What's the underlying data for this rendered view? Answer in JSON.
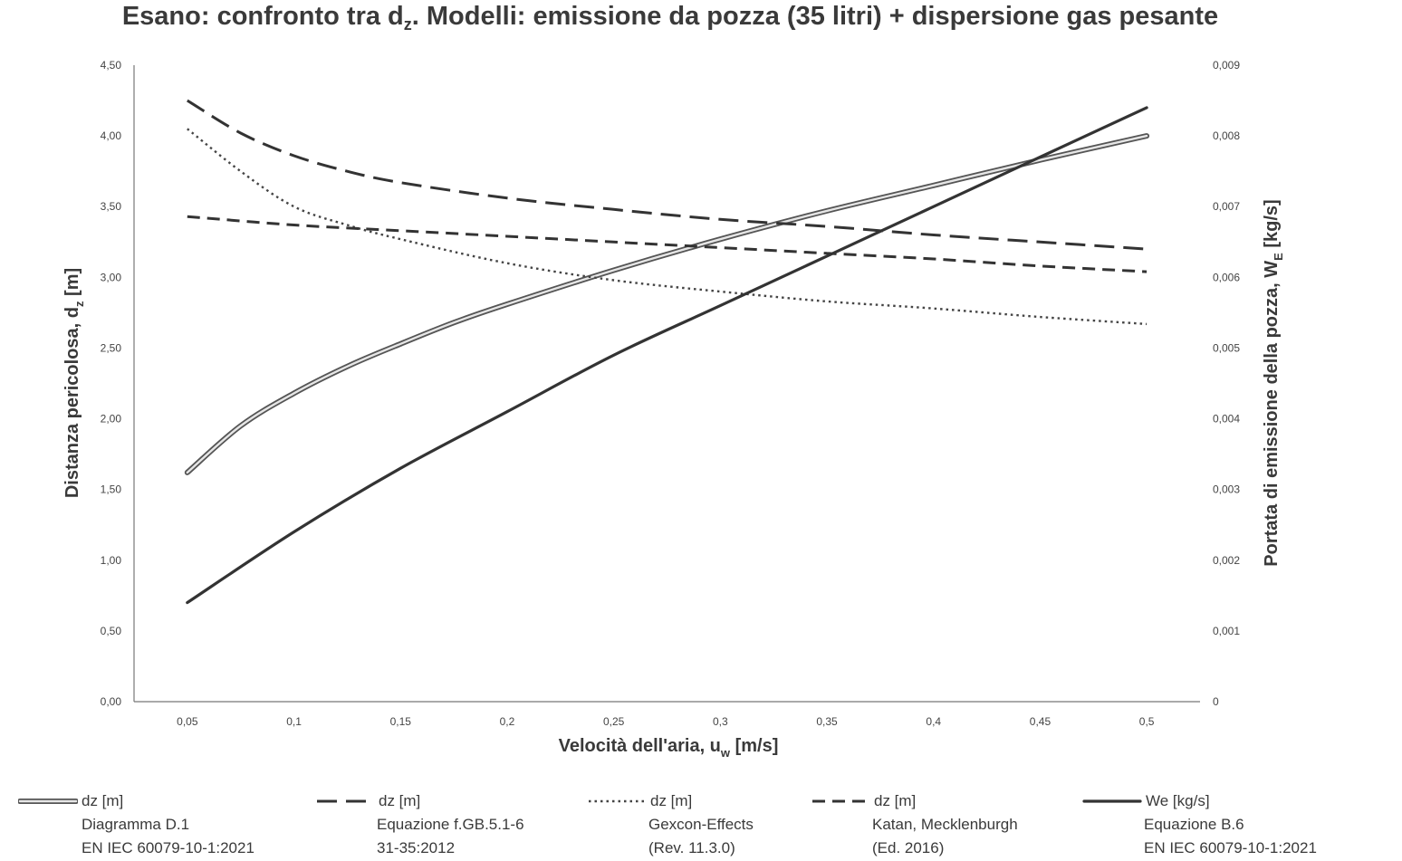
{
  "chart_data": {
    "type": "line",
    "title_main": "Esano: confronto tra d",
    "title_sub": "z",
    "title_rest": ". Modelli: emissione da pozza (35 litri) + dispersione gas pesante",
    "xlabel_main": "Velocità dell'aria, u",
    "xlabel_sub": "w",
    "xlabel_rest": " [m/s]",
    "ylabel_left_main": "Distanza pericolosa, d",
    "ylabel_left_sub": "z",
    "ylabel_left_rest": " [m]",
    "ylabel_right_main": "Portata di emissione della pozza, W",
    "ylabel_right_sub": "E",
    "ylabel_right_rest": " [kg/s]",
    "xlim": [
      0.025,
      0.525
    ],
    "ylim_left": [
      0,
      4.5
    ],
    "ylim_right": [
      0,
      0.009
    ],
    "x_ticks": [
      0.05,
      0.1,
      0.15,
      0.2,
      0.25,
      0.3,
      0.35,
      0.4,
      0.45,
      0.5
    ],
    "x_tick_labels": [
      "0,05",
      "0,1",
      "0,15",
      "0,2",
      "0,25",
      "0,3",
      "0,35",
      "0,4",
      "0,45",
      "0,5"
    ],
    "y_left_ticks": [
      0,
      0.5,
      1,
      1.5,
      2,
      2.5,
      3,
      3.5,
      4,
      4.5
    ],
    "y_left_tick_labels": [
      "0,00",
      "0,50",
      "1,00",
      "1,50",
      "2,00",
      "2,50",
      "3,00",
      "3,50",
      "4,00",
      "4,50"
    ],
    "y_right_ticks": [
      0,
      0.001,
      0.002,
      0.003,
      0.004,
      0.005,
      0.006,
      0.007,
      0.008,
      0.009
    ],
    "y_right_tick_labels": [
      "0",
      "0,001",
      "0,002",
      "0,003",
      "0,004",
      "0,005",
      "0,006",
      "0,007",
      "0,008",
      "0,009"
    ],
    "grid": false,
    "legend_position": "bottom",
    "series": [
      {
        "name": "dz [m]",
        "label_line2": "Diagramma D.1",
        "label_line3": "EN IEC 60079-10-1:2021",
        "axis": "left",
        "style": "double",
        "x": [
          0.05,
          0.075,
          0.1,
          0.125,
          0.15,
          0.175,
          0.2,
          0.25,
          0.3,
          0.35,
          0.4,
          0.45,
          0.5
        ],
        "y": [
          1.62,
          1.95,
          2.18,
          2.37,
          2.53,
          2.68,
          2.81,
          3.05,
          3.27,
          3.47,
          3.65,
          3.83,
          4.0
        ]
      },
      {
        "name": "dz [m]",
        "label_line2": "Equazione f.GB.5.1-6",
        "label_line3": "31-35:2012",
        "axis": "left",
        "style": "long-dash",
        "x": [
          0.05,
          0.075,
          0.1,
          0.125,
          0.15,
          0.2,
          0.25,
          0.3,
          0.35,
          0.4,
          0.45,
          0.5
        ],
        "y": [
          4.25,
          4.02,
          3.86,
          3.75,
          3.67,
          3.56,
          3.48,
          3.41,
          3.36,
          3.3,
          3.25,
          3.2
        ]
      },
      {
        "name": "dz [m]",
        "label_line2": "Gexcon-Effects",
        "label_line3": "(Rev. 11.3.0)",
        "axis": "left",
        "style": "dotted",
        "x": [
          0.05,
          0.075,
          0.1,
          0.125,
          0.15,
          0.2,
          0.25,
          0.3,
          0.35,
          0.4,
          0.45,
          0.5
        ],
        "y": [
          4.05,
          3.75,
          3.5,
          3.37,
          3.27,
          3.1,
          2.98,
          2.9,
          2.83,
          2.78,
          2.72,
          2.67
        ]
      },
      {
        "name": "dz [m]",
        "label_line2": "Katan, Mecklenburgh",
        "label_line3": "(Ed. 2016)",
        "axis": "left",
        "style": "dash",
        "x": [
          0.05,
          0.1,
          0.15,
          0.2,
          0.25,
          0.3,
          0.35,
          0.4,
          0.45,
          0.5
        ],
        "y": [
          3.43,
          3.37,
          3.33,
          3.29,
          3.25,
          3.21,
          3.17,
          3.13,
          3.08,
          3.04
        ]
      },
      {
        "name": "We [kg/s]",
        "label_line2": "Equazione B.6",
        "label_line3": "EN IEC 60079-10-1:2021",
        "axis": "right",
        "style": "solid",
        "x": [
          0.05,
          0.1,
          0.15,
          0.2,
          0.25,
          0.3,
          0.35,
          0.4,
          0.45,
          0.5
        ],
        "y": [
          0.0014,
          0.0024,
          0.0033,
          0.0041,
          0.0049,
          0.0056,
          0.0063,
          0.007,
          0.0077,
          0.0084
        ]
      }
    ]
  }
}
